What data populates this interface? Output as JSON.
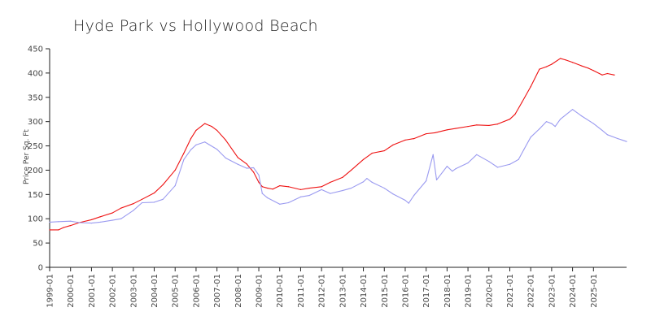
{
  "chart_data": {
    "type": "line",
    "title": "Hyde Park vs Hollywood Beach",
    "xlabel": "",
    "ylabel": "Price Per Sq. Ft",
    "ylim": [
      0,
      450
    ],
    "yticks": [
      0,
      50,
      100,
      150,
      200,
      250,
      300,
      350,
      400,
      450
    ],
    "xlim": [
      "1999-01",
      "2026-08"
    ],
    "xticks": [
      "1999-01",
      "2000-01",
      "2001-01",
      "2002-01",
      "2003-01",
      "2004-01",
      "2005-01",
      "2006-01",
      "2007-01",
      "2008-01",
      "2009-01",
      "2010-01",
      "2011-01",
      "2012-01",
      "2013-01",
      "2014-01",
      "2015-01",
      "2016-01",
      "2017-01",
      "2018-01",
      "2019-01",
      "2020-01",
      "2021-01",
      "2022-01",
      "2023-01",
      "2024-01",
      "2025-01"
    ],
    "grid": false,
    "legend": "none",
    "series": [
      {
        "color": "#ee1111",
        "points": [
          [
            "1999-01",
            77
          ],
          [
            "1999-06",
            77
          ],
          [
            "1999-09",
            82
          ],
          [
            "2000-01",
            86
          ],
          [
            "2000-06",
            92
          ],
          [
            "2001-01",
            98
          ],
          [
            "2001-06",
            104
          ],
          [
            "2002-01",
            112
          ],
          [
            "2002-06",
            122
          ],
          [
            "2003-01",
            131
          ],
          [
            "2003-06",
            140
          ],
          [
            "2004-01",
            153
          ],
          [
            "2004-06",
            170
          ],
          [
            "2005-01",
            200
          ],
          [
            "2005-06",
            235
          ],
          [
            "2005-10",
            265
          ],
          [
            "2006-01",
            282
          ],
          [
            "2006-06",
            296
          ],
          [
            "2006-10",
            290
          ],
          [
            "2007-01",
            282
          ],
          [
            "2007-06",
            262
          ],
          [
            "2008-01",
            226
          ],
          [
            "2008-06",
            213
          ],
          [
            "2008-10",
            196
          ],
          [
            "2009-01",
            175
          ],
          [
            "2009-03",
            166
          ],
          [
            "2009-06",
            163
          ],
          [
            "2009-09",
            161
          ],
          [
            "2010-01",
            168
          ],
          [
            "2010-06",
            166
          ],
          [
            "2011-01",
            160
          ],
          [
            "2011-06",
            163
          ],
          [
            "2012-01",
            166
          ],
          [
            "2012-06",
            175
          ],
          [
            "2013-01",
            185
          ],
          [
            "2013-06",
            200
          ],
          [
            "2014-01",
            222
          ],
          [
            "2014-06",
            235
          ],
          [
            "2015-01",
            240
          ],
          [
            "2015-06",
            252
          ],
          [
            "2016-01",
            262
          ],
          [
            "2016-06",
            265
          ],
          [
            "2017-01",
            275
          ],
          [
            "2017-06",
            277
          ],
          [
            "2018-01",
            283
          ],
          [
            "2018-06",
            286
          ],
          [
            "2019-01",
            290
          ],
          [
            "2019-06",
            293
          ],
          [
            "2020-01",
            292
          ],
          [
            "2020-06",
            295
          ],
          [
            "2021-01",
            305
          ],
          [
            "2021-04",
            315
          ],
          [
            "2021-08",
            340
          ],
          [
            "2022-01",
            372
          ],
          [
            "2022-06",
            408
          ],
          [
            "2022-10",
            413
          ],
          [
            "2023-01",
            418
          ],
          [
            "2023-06",
            430
          ],
          [
            "2023-09",
            427
          ],
          [
            "2024-01",
            422
          ],
          [
            "2024-06",
            415
          ],
          [
            "2024-10",
            410
          ],
          [
            "2025-01",
            405
          ],
          [
            "2025-06",
            396
          ],
          [
            "2025-09",
            399
          ],
          [
            "2026-01",
            396
          ]
        ]
      },
      {
        "color": "#9a9af0",
        "points": [
          [
            "1999-01",
            93
          ],
          [
            "1999-06",
            94
          ],
          [
            "2000-01",
            95
          ],
          [
            "2000-06",
            92
          ],
          [
            "2001-01",
            91
          ],
          [
            "2001-06",
            93
          ],
          [
            "2002-01",
            97
          ],
          [
            "2002-06",
            100
          ],
          [
            "2003-01",
            117
          ],
          [
            "2003-06",
            133
          ],
          [
            "2004-01",
            134
          ],
          [
            "2004-06",
            140
          ],
          [
            "2005-01",
            168
          ],
          [
            "2005-06",
            222
          ],
          [
            "2005-10",
            242
          ],
          [
            "2006-01",
            252
          ],
          [
            "2006-06",
            258
          ],
          [
            "2007-01",
            243
          ],
          [
            "2007-06",
            225
          ],
          [
            "2008-01",
            212
          ],
          [
            "2008-06",
            204
          ],
          [
            "2008-10",
            205
          ],
          [
            "2009-01",
            190
          ],
          [
            "2009-03",
            152
          ],
          [
            "2009-06",
            143
          ],
          [
            "2010-01",
            130
          ],
          [
            "2010-06",
            133
          ],
          [
            "2011-01",
            145
          ],
          [
            "2011-06",
            148
          ],
          [
            "2012-01",
            160
          ],
          [
            "2012-06",
            152
          ],
          [
            "2013-01",
            158
          ],
          [
            "2013-06",
            163
          ],
          [
            "2014-01",
            176
          ],
          [
            "2014-03",
            183
          ],
          [
            "2014-06",
            175
          ],
          [
            "2015-01",
            163
          ],
          [
            "2015-06",
            151
          ],
          [
            "2016-01",
            138
          ],
          [
            "2016-03",
            132
          ],
          [
            "2016-06",
            148
          ],
          [
            "2017-01",
            178
          ],
          [
            "2017-05",
            232
          ],
          [
            "2017-07",
            180
          ],
          [
            "2018-01",
            208
          ],
          [
            "2018-04",
            198
          ],
          [
            "2018-06",
            203
          ],
          [
            "2019-01",
            215
          ],
          [
            "2019-06",
            232
          ],
          [
            "2020-01",
            218
          ],
          [
            "2020-06",
            206
          ],
          [
            "2021-01",
            212
          ],
          [
            "2021-06",
            222
          ],
          [
            "2021-09",
            242
          ],
          [
            "2022-01",
            268
          ],
          [
            "2022-06",
            285
          ],
          [
            "2022-10",
            300
          ],
          [
            "2023-01",
            296
          ],
          [
            "2023-03",
            290
          ],
          [
            "2023-06",
            305
          ],
          [
            "2024-01",
            325
          ],
          [
            "2024-06",
            312
          ],
          [
            "2025-01",
            296
          ],
          [
            "2025-06",
            282
          ],
          [
            "2025-09",
            273
          ],
          [
            "2026-03",
            265
          ],
          [
            "2026-08",
            259
          ]
        ]
      }
    ]
  }
}
